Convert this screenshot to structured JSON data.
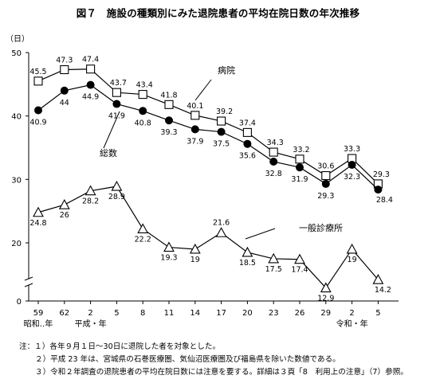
{
  "title": "図７　施設の種類別にみた退院患者の平均在院日数の年次推移",
  "chart_data": {
    "type": "line",
    "y_unit": "（日）",
    "ylim": [
      0,
      50
    ],
    "yaxis_break": true,
    "y_ticks": [
      0,
      20,
      30,
      40,
      50
    ],
    "grid": false,
    "x": [
      "59",
      "62",
      "2",
      "5",
      "8",
      "11",
      "14",
      "17",
      "20",
      "23",
      "26",
      "29",
      "2",
      "5"
    ],
    "era_labels": [
      {
        "text": "昭和‥年",
        "at_index": 0
      },
      {
        "text": "平成・年",
        "at_index": 2
      },
      {
        "text": "令和・年",
        "at_index": 12
      }
    ],
    "series": [
      {
        "name": "病院",
        "marker": "open-square",
        "values": [
          45.5,
          47.3,
          47.4,
          43.7,
          43.4,
          41.8,
          40.1,
          39.2,
          37.4,
          34.3,
          33.2,
          30.6,
          33.3,
          29.3
        ]
      },
      {
        "name": "総数",
        "marker": "filled-circle",
        "values": [
          40.9,
          44.0,
          44.9,
          41.9,
          40.8,
          39.3,
          37.9,
          37.5,
          35.6,
          32.8,
          31.9,
          29.3,
          32.3,
          28.4
        ]
      },
      {
        "name": "一般診療所",
        "marker": "open-triangle",
        "values": [
          24.8,
          26.0,
          28.2,
          28.9,
          22.2,
          19.3,
          19.0,
          21.6,
          18.5,
          17.5,
          17.4,
          12.9,
          19.0,
          14.2
        ]
      }
    ]
  },
  "notes": [
    "注：１）各年９月１日～30日に退院した者を対象とした。",
    "２）平成 23 年は、宮城県の石巻医療圏、気仙沼医療圏及び福島県を除いた数値である。",
    "３）令和２年調査の退院患者の平均在院日数には注意を要する。詳細は３頁「8　利用上の注意」（7）参照。"
  ]
}
